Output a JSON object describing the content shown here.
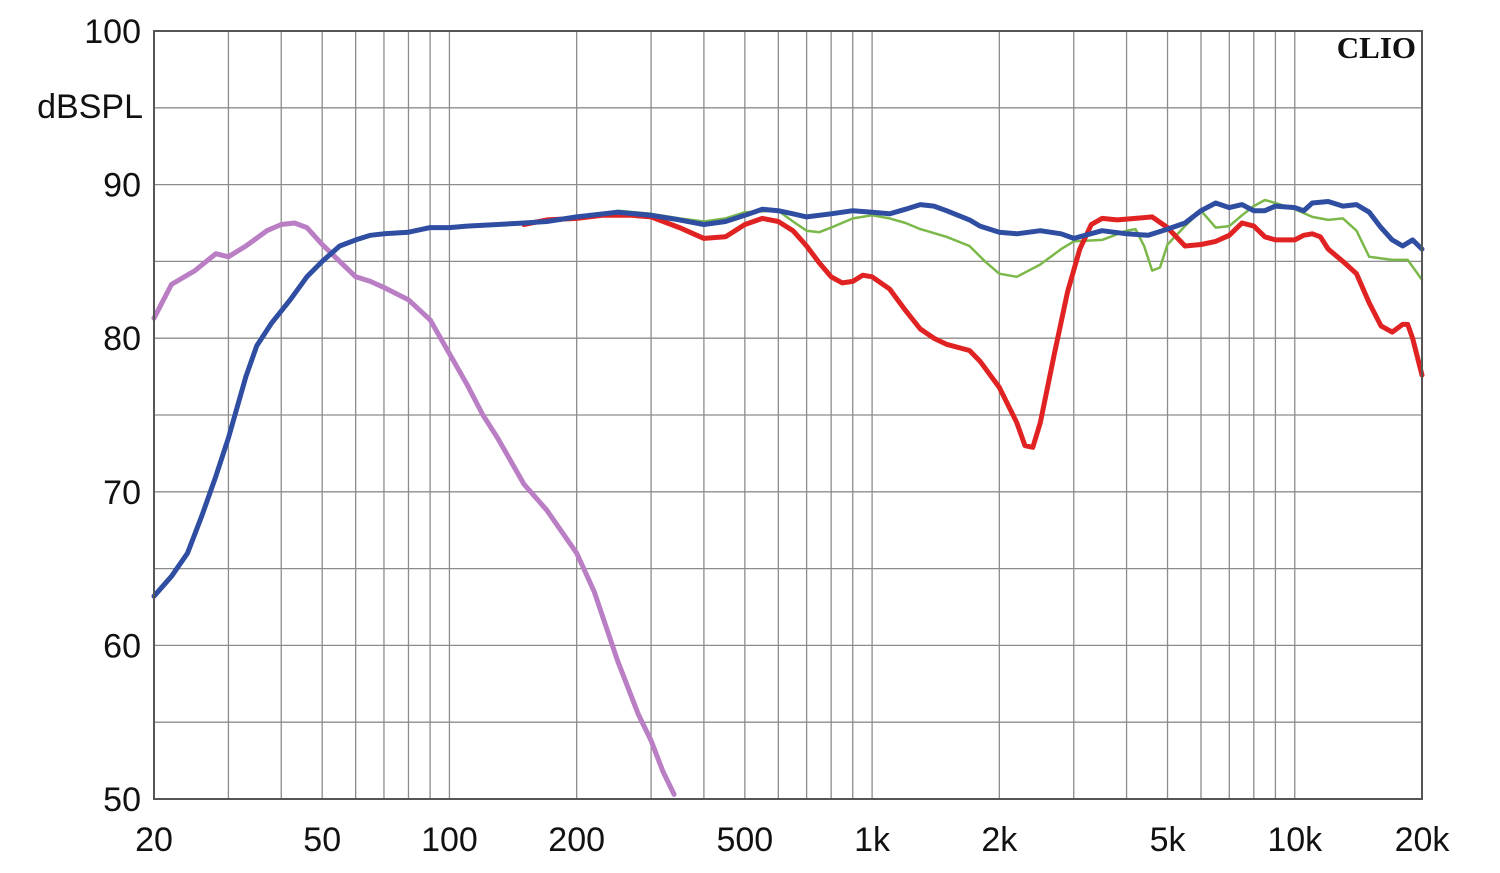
{
  "chart_data": {
    "type": "line",
    "title": "",
    "xlabel": "",
    "ylabel": "dBSPL",
    "brand": "CLIO",
    "xscale": "log",
    "xlim": [
      20,
      20000
    ],
    "ylim": [
      50,
      100
    ],
    "grid": true,
    "x_ticks": [
      {
        "value": 20,
        "label": "20"
      },
      {
        "value": 50,
        "label": "50"
      },
      {
        "value": 100,
        "label": "100"
      },
      {
        "value": 200,
        "label": "200"
      },
      {
        "value": 500,
        "label": "500"
      },
      {
        "value": 1000,
        "label": "1k"
      },
      {
        "value": 2000,
        "label": "2k"
      },
      {
        "value": 5000,
        "label": "5k"
      },
      {
        "value": 10000,
        "label": "10k"
      },
      {
        "value": 20000,
        "label": "20k"
      }
    ],
    "y_ticks": [
      {
        "value": 50,
        "label": "50"
      },
      {
        "value": 60,
        "label": "60"
      },
      {
        "value": 70,
        "label": "70"
      },
      {
        "value": 80,
        "label": "80"
      },
      {
        "value": 90,
        "label": "90"
      },
      {
        "value": 100,
        "label": "100"
      }
    ],
    "series": [
      {
        "color": "#7bb84a",
        "width": 2.5,
        "points": [
          [
            250,
            88.3
          ],
          [
            300,
            88.1
          ],
          [
            350,
            87.8
          ],
          [
            400,
            87.6
          ],
          [
            450,
            87.8
          ],
          [
            500,
            88.2
          ],
          [
            600,
            88.3
          ],
          [
            650,
            87.6
          ],
          [
            700,
            87.0
          ],
          [
            750,
            86.9
          ],
          [
            800,
            87.2
          ],
          [
            900,
            87.8
          ],
          [
            1000,
            88.0
          ],
          [
            1100,
            87.8
          ],
          [
            1200,
            87.5
          ],
          [
            1300,
            87.1
          ],
          [
            1500,
            86.6
          ],
          [
            1700,
            86.0
          ],
          [
            1850,
            85.0
          ],
          [
            2000,
            84.2
          ],
          [
            2200,
            84.0
          ],
          [
            2500,
            84.8
          ],
          [
            2800,
            85.8
          ],
          [
            3000,
            86.3
          ],
          [
            3500,
            86.4
          ],
          [
            4000,
            87.0
          ],
          [
            4200,
            87.1
          ],
          [
            4400,
            86.0
          ],
          [
            4600,
            84.4
          ],
          [
            4800,
            84.6
          ],
          [
            5000,
            86.1
          ],
          [
            5500,
            87.3
          ],
          [
            6000,
            88.3
          ],
          [
            6500,
            87.2
          ],
          [
            7000,
            87.3
          ],
          [
            7500,
            88.0
          ],
          [
            8000,
            88.6
          ],
          [
            8500,
            89.0
          ],
          [
            9000,
            88.8
          ],
          [
            10000,
            88.4
          ],
          [
            11000,
            87.9
          ],
          [
            12000,
            87.7
          ],
          [
            13000,
            87.8
          ],
          [
            14000,
            87.0
          ],
          [
            15000,
            85.3
          ],
          [
            17000,
            85.1
          ],
          [
            18500,
            85.1
          ],
          [
            20000,
            83.8
          ]
        ]
      },
      {
        "color": "#b97ec4",
        "width": 5,
        "points": [
          [
            20,
            81.3
          ],
          [
            22,
            83.5
          ],
          [
            25,
            84.4
          ],
          [
            28,
            85.5
          ],
          [
            30,
            85.3
          ],
          [
            33,
            86.0
          ],
          [
            37,
            87.0
          ],
          [
            40,
            87.4
          ],
          [
            43,
            87.5
          ],
          [
            46,
            87.2
          ],
          [
            50,
            86.1
          ],
          [
            55,
            85.0
          ],
          [
            60,
            84.0
          ],
          [
            65,
            83.7
          ],
          [
            70,
            83.3
          ],
          [
            80,
            82.5
          ],
          [
            90,
            81.2
          ],
          [
            100,
            79.0
          ],
          [
            110,
            77.0
          ],
          [
            120,
            75.0
          ],
          [
            130,
            73.5
          ],
          [
            150,
            70.5
          ],
          [
            170,
            68.8
          ],
          [
            200,
            66.0
          ],
          [
            220,
            63.5
          ],
          [
            250,
            59.0
          ],
          [
            280,
            55.5
          ],
          [
            300,
            53.8
          ],
          [
            320,
            51.8
          ],
          [
            340,
            50.3
          ]
        ]
      },
      {
        "color": "#e02322",
        "width": 5,
        "points": [
          [
            150,
            87.4
          ],
          [
            170,
            87.7
          ],
          [
            200,
            87.8
          ],
          [
            230,
            88.0
          ],
          [
            270,
            88.0
          ],
          [
            300,
            87.9
          ],
          [
            350,
            87.2
          ],
          [
            400,
            86.5
          ],
          [
            450,
            86.6
          ],
          [
            500,
            87.4
          ],
          [
            550,
            87.8
          ],
          [
            600,
            87.6
          ],
          [
            650,
            87.0
          ],
          [
            700,
            86.0
          ],
          [
            750,
            84.9
          ],
          [
            800,
            84.0
          ],
          [
            850,
            83.6
          ],
          [
            900,
            83.7
          ],
          [
            950,
            84.1
          ],
          [
            1000,
            84.0
          ],
          [
            1100,
            83.2
          ],
          [
            1200,
            81.8
          ],
          [
            1300,
            80.6
          ],
          [
            1400,
            80.0
          ],
          [
            1500,
            79.6
          ],
          [
            1700,
            79.2
          ],
          [
            1800,
            78.5
          ],
          [
            2000,
            76.8
          ],
          [
            2200,
            74.5
          ],
          [
            2300,
            73.0
          ],
          [
            2400,
            72.9
          ],
          [
            2500,
            74.5
          ],
          [
            2700,
            79.0
          ],
          [
            2900,
            83.0
          ],
          [
            3100,
            85.8
          ],
          [
            3300,
            87.4
          ],
          [
            3500,
            87.8
          ],
          [
            3800,
            87.7
          ],
          [
            4200,
            87.8
          ],
          [
            4600,
            87.9
          ],
          [
            5000,
            87.2
          ],
          [
            5500,
            86.0
          ],
          [
            6000,
            86.1
          ],
          [
            6500,
            86.3
          ],
          [
            7000,
            86.7
          ],
          [
            7500,
            87.5
          ],
          [
            8000,
            87.3
          ],
          [
            8500,
            86.6
          ],
          [
            9000,
            86.4
          ],
          [
            10000,
            86.4
          ],
          [
            10500,
            86.7
          ],
          [
            11000,
            86.8
          ],
          [
            11500,
            86.6
          ],
          [
            12000,
            85.8
          ],
          [
            13000,
            85.0
          ],
          [
            14000,
            84.2
          ],
          [
            15000,
            82.3
          ],
          [
            16000,
            80.8
          ],
          [
            17000,
            80.4
          ],
          [
            18000,
            80.9
          ],
          [
            18500,
            80.9
          ],
          [
            19000,
            80.0
          ],
          [
            20000,
            77.6
          ]
        ]
      },
      {
        "color": "#2f4ea2",
        "width": 5,
        "points": [
          [
            20,
            63.2
          ],
          [
            22,
            64.5
          ],
          [
            24,
            66.0
          ],
          [
            26,
            68.5
          ],
          [
            28,
            71.0
          ],
          [
            30,
            73.5
          ],
          [
            33,
            77.5
          ],
          [
            35,
            79.5
          ],
          [
            38,
            81.0
          ],
          [
            42,
            82.5
          ],
          [
            46,
            84.0
          ],
          [
            50,
            85.0
          ],
          [
            55,
            86.0
          ],
          [
            60,
            86.4
          ],
          [
            65,
            86.7
          ],
          [
            70,
            86.8
          ],
          [
            80,
            86.9
          ],
          [
            90,
            87.2
          ],
          [
            100,
            87.2
          ],
          [
            110,
            87.3
          ],
          [
            130,
            87.4
          ],
          [
            150,
            87.5
          ],
          [
            170,
            87.6
          ],
          [
            200,
            87.9
          ],
          [
            250,
            88.2
          ],
          [
            300,
            88.0
          ],
          [
            350,
            87.7
          ],
          [
            400,
            87.4
          ],
          [
            450,
            87.6
          ],
          [
            500,
            88.0
          ],
          [
            550,
            88.4
          ],
          [
            600,
            88.3
          ],
          [
            650,
            88.1
          ],
          [
            700,
            87.9
          ],
          [
            800,
            88.1
          ],
          [
            900,
            88.3
          ],
          [
            1000,
            88.2
          ],
          [
            1100,
            88.1
          ],
          [
            1200,
            88.4
          ],
          [
            1300,
            88.7
          ],
          [
            1400,
            88.6
          ],
          [
            1500,
            88.3
          ],
          [
            1700,
            87.7
          ],
          [
            1800,
            87.3
          ],
          [
            2000,
            86.9
          ],
          [
            2200,
            86.8
          ],
          [
            2500,
            87.0
          ],
          [
            2800,
            86.8
          ],
          [
            3000,
            86.5
          ],
          [
            3500,
            87.0
          ],
          [
            4000,
            86.8
          ],
          [
            4500,
            86.7
          ],
          [
            5000,
            87.1
          ],
          [
            5500,
            87.5
          ],
          [
            6000,
            88.3
          ],
          [
            6500,
            88.8
          ],
          [
            7000,
            88.5
          ],
          [
            7500,
            88.7
          ],
          [
            8000,
            88.3
          ],
          [
            8500,
            88.3
          ],
          [
            9000,
            88.6
          ],
          [
            10000,
            88.5
          ],
          [
            10500,
            88.3
          ],
          [
            11000,
            88.8
          ],
          [
            12000,
            88.9
          ],
          [
            13000,
            88.6
          ],
          [
            14000,
            88.7
          ],
          [
            15000,
            88.2
          ],
          [
            16000,
            87.2
          ],
          [
            17000,
            86.4
          ],
          [
            18000,
            86.0
          ],
          [
            19000,
            86.4
          ],
          [
            20000,
            85.8
          ]
        ]
      }
    ]
  }
}
